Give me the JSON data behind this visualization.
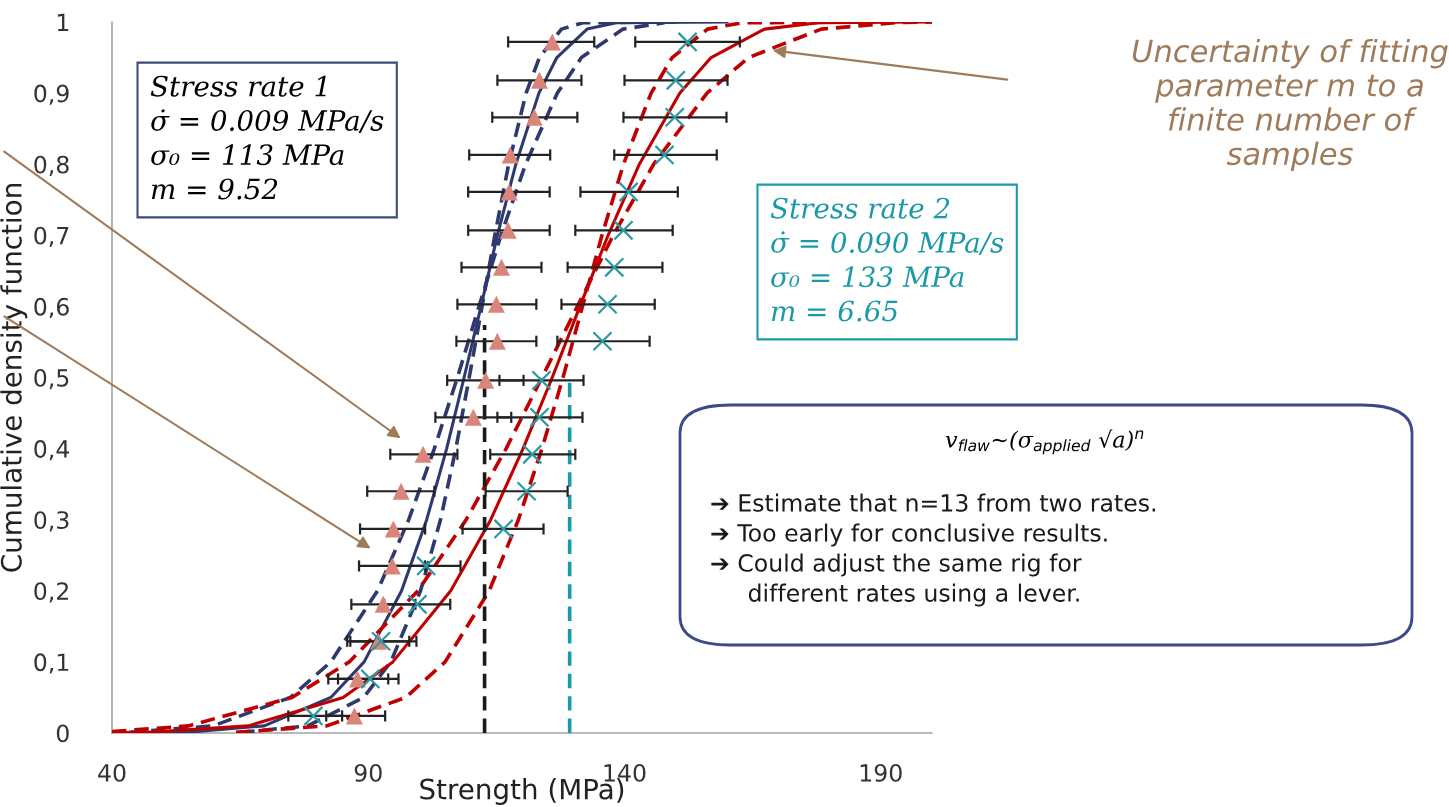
{
  "chart_data": {
    "type": "scatter",
    "xlabel": "Strength (MPa)",
    "ylabel": "Cumulative density function",
    "xlim": [
      40,
      200
    ],
    "ylim": [
      0,
      1
    ],
    "xticks": [
      40,
      90,
      140,
      190
    ],
    "yticks": [
      0,
      {
        "value": 0.1,
        "label": "0,1"
      },
      {
        "value": 0.2,
        "label": "0,2"
      },
      {
        "value": 0.3,
        "label": "0,3"
      },
      {
        "value": 0.4,
        "label": "0,4"
      },
      {
        "value": 0.5,
        "label": "0,5"
      },
      {
        "value": 0.6,
        "label": "0,6"
      },
      {
        "value": 0.7,
        "label": "0,7"
      },
      {
        "value": 0.8,
        "label": "0,8"
      },
      {
        "value": 0.9,
        "label": "0,9"
      },
      1
    ],
    "series": [
      {
        "type": "line",
        "color": "#2e3a6e",
        "line_style": "dashed",
        "x": [
          43.3,
          59.7,
          74.8,
          82.7,
          91.8,
          97.9,
          102.9,
          107.4,
          111.6,
          115.9,
          120.7,
          126.9,
          131.6,
          139.7,
          147.8
        ],
        "values": [
          0.001,
          0.01,
          0.05,
          0.1,
          0.2,
          0.3,
          0.4,
          0.5,
          0.6,
          0.7,
          0.8,
          0.9,
          0.95,
          0.99,
          0.999
        ]
      },
      {
        "type": "line",
        "color": "#2e3a6e",
        "line_style": "dashed",
        "x": [
          65.0,
          78.2,
          89.1,
          94.4,
          100.2,
          104.1,
          107.1,
          109.7,
          112.2,
          114.7,
          117.4,
          120.8,
          123.4,
          127.7,
          131.9,
          150
        ],
        "values": [
          0.001,
          0.01,
          0.05,
          0.1,
          0.2,
          0.3,
          0.4,
          0.5,
          0.6,
          0.7,
          0.8,
          0.9,
          0.95,
          0.99,
          0.999,
          1
        ]
      },
      {
        "type": "line",
        "color": "#2e3a6e",
        "line_style": "solid",
        "x": [
          40,
          54.7,
          69.7,
          82.7,
          89.2,
          96.5,
          101.4,
          105.3,
          108.7,
          112.0,
          115.2,
          118.8,
          123.3,
          126.8,
          132.7,
          138.4,
          160
        ],
        "values": [
          0,
          0.001,
          0.01,
          0.05,
          0.1,
          0.2,
          0.3,
          0.4,
          0.5,
          0.6,
          0.7,
          0.8,
          0.9,
          0.95,
          0.99,
          0.999,
          1
        ]
      },
      {
        "type": "line",
        "color": "#c00000",
        "line_style": "dashed",
        "x": [
          40,
          54.9,
          75.1,
          86.3,
          99.7,
          109.1,
          116.9,
          123.9,
          130.8,
          137.8,
          145.7,
          156.1,
          164.2,
          178.4,
          192.9,
          200
        ],
        "values": [
          0.002,
          0.01,
          0.05,
          0.1,
          0.2,
          0.3,
          0.4,
          0.5,
          0.6,
          0.7,
          0.8,
          0.9,
          0.95,
          0.99,
          0.999,
          1
        ]
      },
      {
        "type": "line",
        "color": "#c00000",
        "line_style": "dashed",
        "x": [
          64.2,
          81.9,
          97.3,
          105.0,
          113.6,
          119.3,
          123.9,
          128.0,
          131.8,
          135.6,
          139.8,
          145.2,
          149.3,
          156.2,
          163.0,
          190
        ],
        "values": [
          0.001,
          0.01,
          0.05,
          0.1,
          0.2,
          0.3,
          0.4,
          0.5,
          0.6,
          0.7,
          0.8,
          0.9,
          0.95,
          0.99,
          0.999,
          1
        ]
      },
      {
        "type": "line",
        "color": "#c00000",
        "line_style": "solid",
        "x": [
          40,
          47.1,
          66.6,
          85.1,
          94.8,
          106.1,
          113.9,
          120.2,
          125.9,
          131.3,
          136.8,
          142.9,
          150.8,
          156.9,
          167.3,
          177.9,
          200
        ],
        "values": [
          0,
          0.001,
          0.01,
          0.05,
          0.1,
          0.2,
          0.3,
          0.4,
          0.5,
          0.6,
          0.7,
          0.8,
          0.9,
          0.95,
          0.99,
          0.999,
          1
        ]
      },
      {
        "type": "line",
        "color": "#1a1a1a",
        "line_style": "dashed",
        "x": [
          112.7,
          112.7
        ],
        "values": [
          0,
          0.574
        ]
      },
      {
        "type": "line",
        "color": "#1a9aa8",
        "line_style": "dashed",
        "x": [
          129.3,
          129.3
        ],
        "values": [
          0,
          0.499
        ]
      },
      {
        "color": "#d9857a",
        "marker": "triangle",
        "x": [
          87.3,
          87.9,
          92.0,
          92.9,
          94.7,
          94.9,
          96.4,
          100.7,
          110.5,
          112.9,
          115.2,
          115.0,
          116.0,
          117.3,
          117.5,
          117.7,
          122.4,
          123.4,
          125.9
        ],
        "values": [
          0.024,
          0.076,
          0.129,
          0.181,
          0.235,
          0.287,
          0.34,
          0.392,
          0.444,
          0.496,
          0.551,
          0.603,
          0.655,
          0.707,
          0.761,
          0.813,
          0.866,
          0.918,
          0.972
        ],
        "xerrors": [
          [
            81.8,
            93.3
          ],
          [
            82.2,
            93.9
          ],
          [
            85.9,
            98.0
          ],
          [
            86.7,
            99.2
          ],
          [
            88.2,
            101.1
          ],
          [
            88.4,
            101.1
          ],
          [
            89.8,
            102.9
          ],
          [
            94.3,
            107.4
          ],
          [
            103.1,
            117.9
          ],
          [
            105.4,
            120.3
          ],
          [
            107.2,
            122.8
          ],
          [
            107.4,
            122.8
          ],
          [
            108.2,
            123.8
          ],
          [
            109.5,
            125.4
          ],
          [
            109.5,
            125.4
          ],
          [
            109.7,
            125.5
          ],
          [
            114.2,
            130.8
          ],
          [
            115.2,
            131.6
          ],
          [
            117.3,
            134.1
          ]
        ]
      },
      {
        "color": "#2a9aa5",
        "marker": "cross",
        "x": [
          79.3,
          90.4,
          92.5,
          99.6,
          101.3,
          116.4,
          120.9,
          122.0,
          123.4,
          123.8,
          135.7,
          136.7,
          138.0,
          139.8,
          140.8,
          147.8,
          149.8,
          150.0,
          152.3
        ],
        "values": [
          0.024,
          0.076,
          0.129,
          0.181,
          0.235,
          0.287,
          0.34,
          0.392,
          0.444,
          0.496,
          0.551,
          0.603,
          0.655,
          0.707,
          0.761,
          0.813,
          0.866,
          0.918,
          0.972
        ],
        "xerrors": [
          [
            74.4,
            84.9
          ],
          [
            84.1,
            95.9
          ],
          [
            86.5,
            99.4
          ],
          [
            93.1,
            106.0
          ],
          [
            94.7,
            108.0
          ],
          [
            108.4,
            124.2
          ],
          [
            112.9,
            128.9
          ],
          [
            113.8,
            130.4
          ],
          [
            115.2,
            131.8
          ],
          [
            115.6,
            132.0
          ],
          [
            126.9,
            144.9
          ],
          [
            127.7,
            145.9
          ],
          [
            128.9,
            147.4
          ],
          [
            130.4,
            149.4
          ],
          [
            131.4,
            150.4
          ],
          [
            138.0,
            158.0
          ],
          [
            139.8,
            159.9
          ],
          [
            140.0,
            160.1
          ],
          [
            142.1,
            162.5
          ]
        ]
      }
    ],
    "annotations": [
      "Stress rate 1\nσ̇ = 0.009 MPa/s\nσ₀ = 113 MPa\nm = 9.52",
      "Stress rate 2\nσ̇ = 0.090 MPa/s\nσ₀ = 133 MPa\nm = 6.65",
      "v$_{flaw}$~(σ$_{applied}$ √a)$^{n}$",
      "➔ Estimate that n=13 from two rates.\n➔ Too early for conclusive results.\n➔ Could adjust the same rig for\n     different rates using a lever.",
      "Uncertainty of fitting\nparameter m to a\nfinite number of\nsamples"
    ]
  }
}
